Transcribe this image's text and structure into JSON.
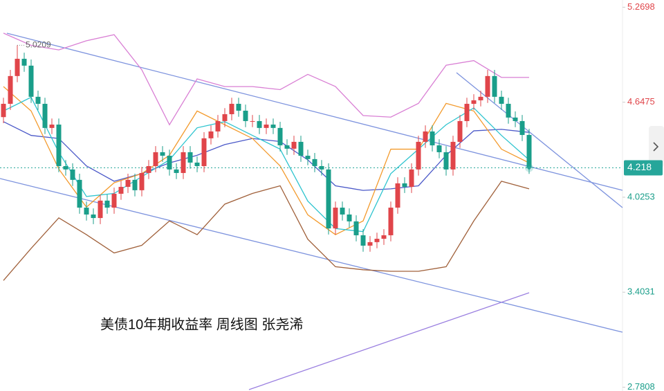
{
  "chart_data": {
    "type": "candlestick",
    "title": "美债10年期收益率 周线图 张尧浠",
    "ylim": [
      2.756,
      5.317
    ],
    "yticks": [
      5.2698,
      4.6475,
      4.0253,
      3.4031,
      2.7808
    ],
    "up_color": "#e0454a",
    "down_color": "#1a9e8a",
    "last_price": 4.218,
    "last_price_color": "#26a69a",
    "high_marker": {
      "index": 2,
      "label": "5.0209"
    },
    "open": [
      4.55,
      4.637,
      4.819,
      4.932,
      4.887,
      4.683,
      4.637,
      4.479,
      4.501,
      4.229,
      4.207,
      4.139,
      3.957,
      3.912,
      3.889,
      4.003,
      3.957,
      4.048,
      4.093,
      4.139,
      4.071,
      4.184,
      4.229,
      4.32,
      4.297,
      4.207,
      4.184,
      4.32,
      4.252,
      4.229,
      4.411,
      4.456,
      4.524,
      4.569,
      4.637,
      4.592,
      4.524,
      4.524,
      4.479,
      4.501,
      4.479,
      4.365,
      4.343,
      4.388,
      4.297,
      4.275,
      4.229,
      4.207,
      3.821,
      3.957,
      3.912,
      3.867,
      3.776,
      3.708,
      3.731,
      3.753,
      3.776,
      3.957,
      4.116,
      4.093,
      4.207,
      4.388,
      4.456,
      4.365,
      4.32,
      4.207,
      4.388,
      4.524,
      4.637,
      4.66,
      4.683,
      4.819,
      4.683,
      4.637,
      4.547,
      4.524,
      4.433
    ],
    "high": [
      4.677,
      4.859,
      5.0209,
      4.972,
      4.927,
      4.723,
      4.677,
      4.541,
      4.541,
      4.269,
      4.247,
      4.179,
      3.997,
      3.952,
      4.043,
      4.043,
      4.088,
      4.133,
      4.179,
      4.179,
      4.224,
      4.269,
      4.36,
      4.36,
      4.337,
      4.247,
      4.36,
      4.36,
      4.292,
      4.451,
      4.496,
      4.564,
      4.609,
      4.677,
      4.677,
      4.632,
      4.564,
      4.564,
      4.541,
      4.541,
      4.519,
      4.405,
      4.428,
      4.428,
      4.337,
      4.315,
      4.269,
      4.247,
      3.997,
      3.997,
      3.952,
      3.907,
      3.816,
      3.771,
      3.793,
      3.816,
      3.997,
      4.156,
      4.156,
      4.247,
      4.428,
      4.496,
      4.496,
      4.405,
      4.36,
      4.428,
      4.564,
      4.677,
      4.7,
      4.723,
      4.859,
      4.859,
      4.723,
      4.677,
      4.587,
      4.564,
      4.473
    ],
    "low": [
      4.51,
      4.597,
      4.779,
      4.847,
      4.643,
      4.597,
      4.439,
      4.439,
      4.189,
      4.167,
      4.099,
      3.917,
      3.872,
      3.849,
      3.849,
      3.917,
      3.917,
      4.008,
      4.053,
      4.031,
      4.031,
      4.144,
      4.189,
      4.257,
      4.167,
      4.144,
      4.144,
      4.212,
      4.189,
      4.189,
      4.371,
      4.416,
      4.484,
      4.529,
      4.552,
      4.484,
      4.484,
      4.439,
      4.439,
      4.439,
      4.325,
      4.303,
      4.303,
      4.257,
      4.235,
      4.189,
      4.167,
      3.781,
      3.781,
      3.872,
      3.827,
      3.736,
      3.668,
      3.668,
      3.691,
      3.713,
      3.736,
      3.917,
      4.053,
      4.053,
      4.167,
      4.348,
      4.325,
      4.28,
      4.167,
      4.167,
      4.348,
      4.484,
      4.597,
      4.62,
      4.643,
      4.643,
      4.597,
      4.507,
      4.484,
      4.393,
      4.178
    ],
    "close": [
      4.637,
      4.819,
      4.932,
      4.887,
      4.683,
      4.637,
      4.479,
      4.501,
      4.229,
      4.207,
      4.139,
      3.957,
      3.912,
      3.889,
      4.003,
      3.957,
      4.048,
      4.093,
      4.139,
      4.071,
      4.184,
      4.229,
      4.32,
      4.297,
      4.207,
      4.184,
      4.32,
      4.252,
      4.229,
      4.411,
      4.456,
      4.524,
      4.569,
      4.637,
      4.592,
      4.524,
      4.524,
      4.479,
      4.501,
      4.479,
      4.365,
      4.343,
      4.388,
      4.297,
      4.275,
      4.229,
      4.207,
      3.821,
      3.957,
      3.912,
      3.867,
      3.776,
      3.708,
      3.731,
      3.753,
      3.776,
      3.957,
      4.116,
      4.093,
      4.207,
      4.388,
      4.456,
      4.365,
      4.32,
      4.207,
      4.388,
      4.524,
      4.637,
      4.66,
      4.683,
      4.819,
      4.683,
      4.637,
      4.547,
      4.524,
      4.433,
      4.218
    ],
    "series": [
      {
        "color": "#d97fd4",
        "values": [
          5.1,
          5.02,
          4.99,
          5.05,
          5.09,
          4.86,
          4.5,
          4.8,
          4.75,
          4.75,
          4.73,
          4.83,
          4.75,
          4.56,
          4.55,
          4.64,
          4.89,
          4.92,
          4.81,
          4.81
        ]
      },
      {
        "color": "#4a58c8",
        "values": [
          4.52,
          4.43,
          4.41,
          4.23,
          4.13,
          4.18,
          4.25,
          4.3,
          4.37,
          4.41,
          4.39,
          4.27,
          4.1,
          4.07,
          4.08,
          4.1,
          4.3,
          4.46,
          4.47,
          4.45
        ]
      },
      {
        "color": "#a0603a",
        "values": [
          3.48,
          3.69,
          3.89,
          3.78,
          3.66,
          3.71,
          3.87,
          3.78,
          3.98,
          4.05,
          4.1,
          3.75,
          3.57,
          3.55,
          3.54,
          3.54,
          3.57,
          3.87,
          4.13,
          4.08
        ]
      },
      {
        "color": "#f39a2c",
        "values": [
          4.75,
          4.59,
          4.21,
          3.96,
          4.12,
          4.18,
          4.3,
          4.59,
          4.5,
          4.41,
          4.23,
          3.91,
          3.78,
          3.87,
          4.34,
          4.34,
          4.64,
          4.59,
          4.34,
          4.25
        ]
      },
      {
        "color": "#2ec4cf",
        "values": [
          4.59,
          4.68,
          4.32,
          4.03,
          4.05,
          4.16,
          4.27,
          4.48,
          4.52,
          4.43,
          4.34,
          4.0,
          3.82,
          3.8,
          4.18,
          4.34,
          4.5,
          4.61,
          4.43,
          4.27
        ]
      }
    ]
  }
}
